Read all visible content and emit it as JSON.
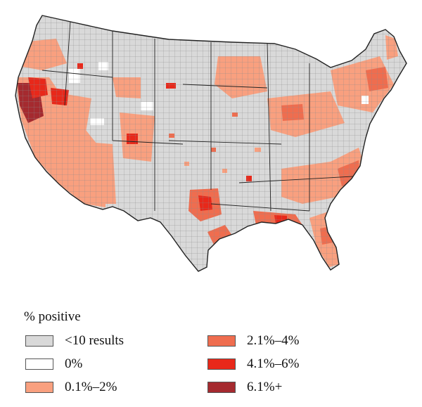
{
  "legend": {
    "title": "% positive",
    "items": [
      {
        "label": "<10 results",
        "color": "#d9d9d9"
      },
      {
        "label": "0%",
        "color": "#ffffff"
      },
      {
        "label": "0.1%–2%",
        "color": "#f9a07f"
      },
      {
        "label": "2.1%–4%",
        "color": "#ef6d4f"
      },
      {
        "label": "4.1%–6%",
        "color": "#e8281a"
      },
      {
        "label": "6.1%+",
        "color": "#a52a2f"
      }
    ]
  }
}
